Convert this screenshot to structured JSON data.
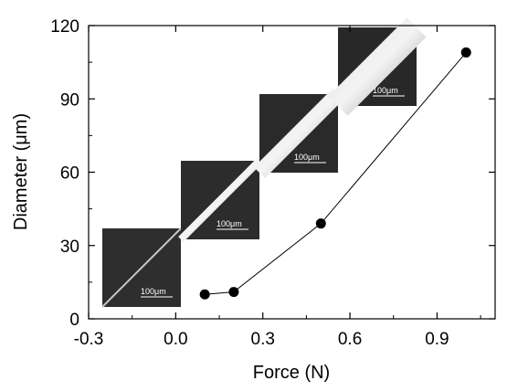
{
  "chart_data": {
    "type": "scatter",
    "xlabel": "Force (N)",
    "ylabel": "Diameter (μm)",
    "xlim": [
      -0.3,
      1.1
    ],
    "ylim": [
      0,
      120
    ],
    "x_ticks": [
      -0.3,
      0.0,
      0.3,
      0.6,
      0.9
    ],
    "x_tick_labels": [
      "-0.3",
      "0.0",
      "0.3",
      "0.6",
      "0.9"
    ],
    "y_ticks": [
      0,
      30,
      60,
      90,
      120
    ],
    "y_tick_labels": [
      "0",
      "30",
      "60",
      "90",
      "120"
    ],
    "grid": false,
    "legend": "none",
    "series": [
      {
        "x": [
          0.1,
          0.2,
          0.5,
          1.0
        ],
        "y": [
          10,
          11,
          39,
          109
        ],
        "marker": "filled-circle",
        "line": true,
        "color": "#000000"
      }
    ],
    "insets": [
      {
        "scale_label": "100μm",
        "fiber": "thin"
      },
      {
        "scale_label": "100μm",
        "fiber": "medium"
      },
      {
        "scale_label": "100μm",
        "fiber": "thick"
      },
      {
        "scale_label": "100μm",
        "fiber": "thickest"
      }
    ]
  }
}
